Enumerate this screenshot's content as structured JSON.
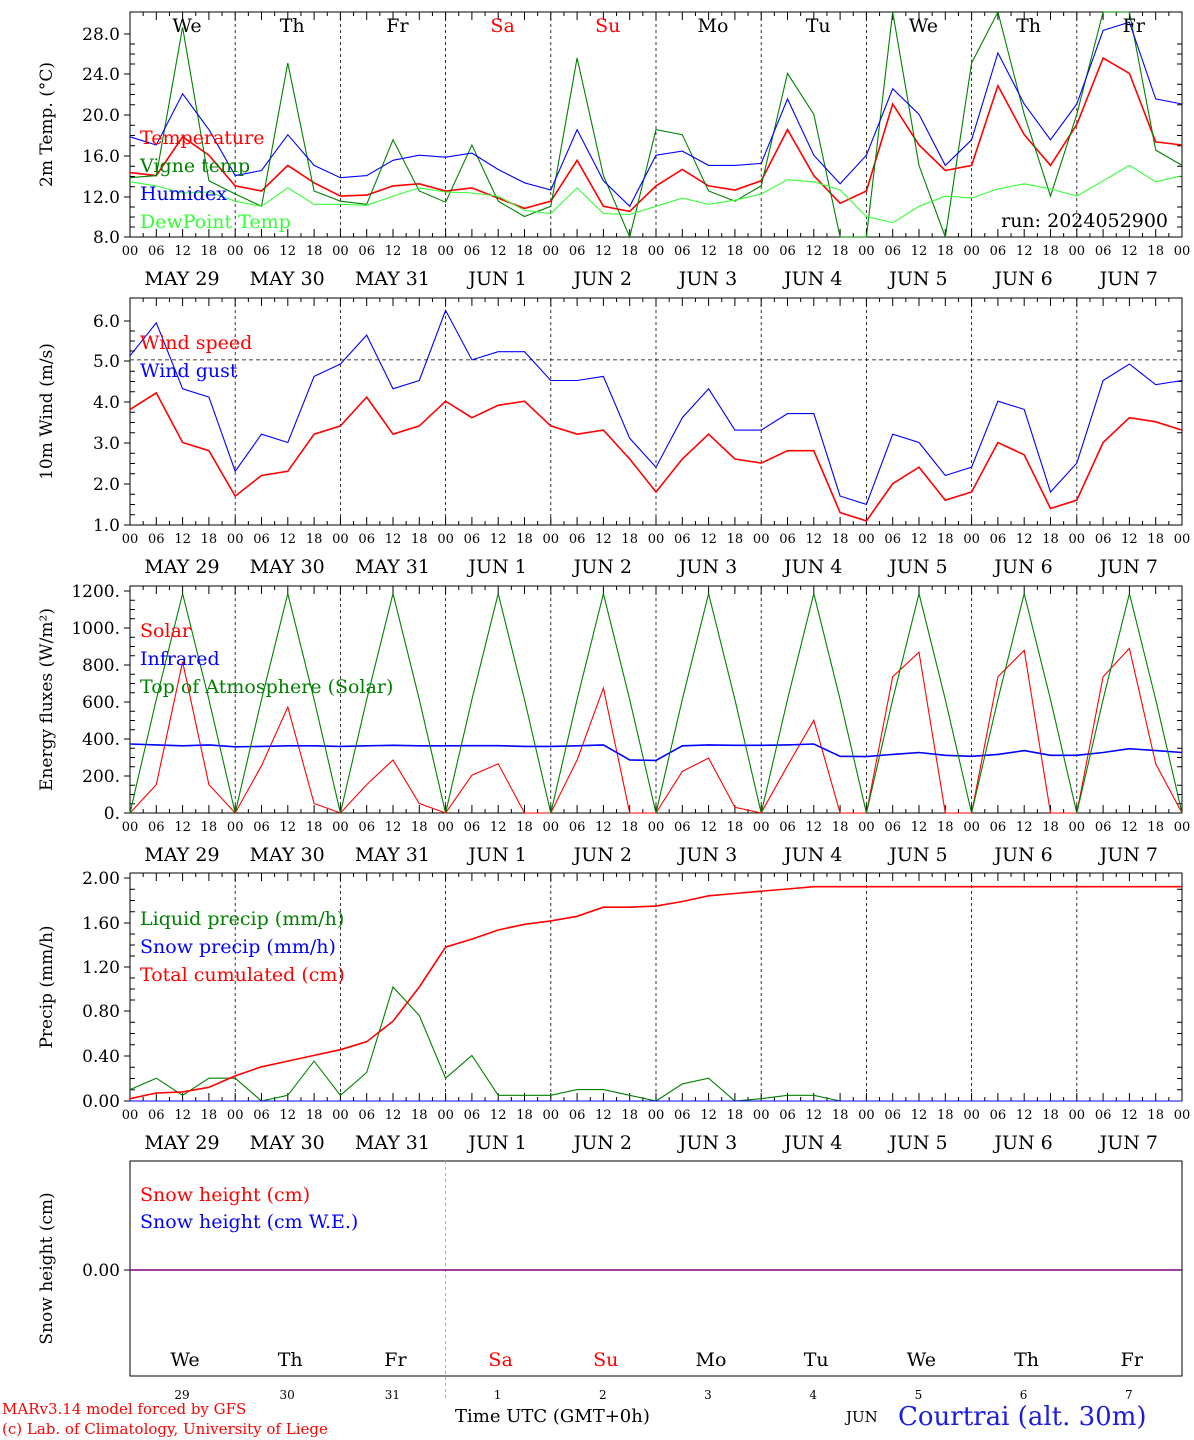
{
  "footer": {
    "model_line": "MARv3.14 model forced by GFS",
    "credit_line": "(c) Lab. of Climatology, University of Liege",
    "time_label": "Time UTC (GMT+0h)",
    "month_label": "JUN",
    "station": "Courtrai (alt. 30m)"
  },
  "run_label": "run: 2024052900",
  "hour_ticks": [
    "00",
    "06",
    "12",
    "18"
  ],
  "date_labels": [
    "MAY 29",
    "MAY 30",
    "MAY 31",
    "JUN  1",
    "JUN  2",
    "JUN  3",
    "JUN  4",
    "JUN  5",
    "JUN  6",
    "JUN  7"
  ],
  "day_names": [
    {
      "label": "We",
      "color": "#000000"
    },
    {
      "label": "Th",
      "color": "#000000"
    },
    {
      "label": "Fr",
      "color": "#000000"
    },
    {
      "label": "Sa",
      "color": "#ff0000"
    },
    {
      "label": "Su",
      "color": "#ff0000"
    },
    {
      "label": "Mo",
      "color": "#000000"
    },
    {
      "label": "Tu",
      "color": "#000000"
    },
    {
      "label": "We",
      "color": "#000000"
    },
    {
      "label": "Th",
      "color": "#000000"
    },
    {
      "label": "Fr",
      "color": "#000000"
    }
  ],
  "day_numbers": [
    "29",
    "30",
    "31",
    "1",
    "2",
    "3",
    "4",
    "5",
    "6",
    "7"
  ],
  "chart_data": [
    {
      "type": "line",
      "ylabel": "2m Temp. (°C)",
      "ylim": [
        8,
        30
      ],
      "yticks": [
        "8.0",
        "12.0",
        "16.0",
        "20.0",
        "24.0",
        "28.0"
      ],
      "x_unit": "hours since 2024-05-29 00 UTC",
      "x": [
        0,
        6,
        12,
        18,
        24,
        30,
        36,
        42,
        48,
        54,
        60,
        66,
        72,
        78,
        84,
        90,
        96,
        102,
        108,
        114,
        120,
        126,
        132,
        138,
        144,
        150,
        156,
        162,
        168,
        174,
        180,
        186,
        192,
        198,
        204,
        210,
        216,
        222,
        228,
        234,
        240
      ],
      "series": [
        {
          "name": "Temperature",
          "color": "#ff0000",
          "values": [
            14.3,
            14,
            17.8,
            16,
            13,
            12.5,
            15,
            13.3,
            12,
            12.1,
            13,
            13.2,
            12.5,
            12.8,
            11.8,
            10.8,
            11.5,
            15.5,
            11,
            10.5,
            13,
            14.6,
            13,
            12.6,
            13.5,
            18.5,
            14,
            11.3,
            12.5,
            21,
            17,
            14.5,
            15,
            22.8,
            18,
            15,
            19,
            25.5,
            24,
            17.3,
            17
          ]
        },
        {
          "name": "Vigne temp",
          "color": "#008000",
          "values": [
            13.8,
            14,
            28.5,
            13.5,
            12.2,
            11,
            25,
            12.5,
            11.5,
            11.2,
            17.5,
            12.5,
            11.4,
            17,
            11.5,
            10,
            11,
            25.5,
            14,
            6,
            18.5,
            18,
            12.5,
            11.5,
            13,
            24,
            20,
            8,
            7,
            30,
            15,
            8,
            25,
            30,
            20,
            12,
            20,
            30,
            30,
            16.5,
            15
          ]
        },
        {
          "name": "Humidex",
          "color": "#0000ff",
          "values": [
            17.8,
            17,
            22,
            18.5,
            14,
            14.5,
            18,
            15,
            13.8,
            14,
            15.5,
            16,
            15.8,
            16.2,
            14.6,
            13.3,
            12.6,
            18.5,
            13.5,
            11,
            16,
            16.4,
            15,
            15,
            15.2,
            21.5,
            16,
            13.2,
            16,
            22.5,
            20,
            15,
            17.5,
            26,
            21,
            17.5,
            21,
            28.2,
            29,
            21.5,
            21
          ]
        },
        {
          "name": "DewPoint Temp",
          "color": "#33ff33",
          "values": [
            13.4,
            13,
            12.3,
            12.4,
            11.5,
            11,
            12.8,
            11.2,
            11.2,
            11.1,
            12,
            12.8,
            12.4,
            12.3,
            12,
            10.6,
            10.3,
            12.8,
            10.3,
            10.2,
            11,
            11.8,
            11.2,
            11.6,
            12.2,
            13.6,
            13.4,
            12.6,
            10,
            9.4,
            11,
            12,
            11.8,
            12.7,
            13.2,
            12.7,
            12,
            13.5,
            15,
            13.4,
            14
          ]
        }
      ]
    },
    {
      "type": "line",
      "ylabel": "10m Wind (m/s)",
      "ylim": [
        1,
        6.5
      ],
      "yticks": [
        "1.0",
        "2.0",
        "3.0",
        "4.0",
        "5.0",
        "6.0"
      ],
      "reference_line": 5.0,
      "x_unit": "hours since 2024-05-29 00 UTC",
      "x": [
        0,
        6,
        12,
        18,
        24,
        30,
        36,
        42,
        48,
        54,
        60,
        66,
        72,
        78,
        84,
        90,
        96,
        102,
        108,
        114,
        120,
        126,
        132,
        138,
        144,
        150,
        156,
        162,
        168,
        174,
        180,
        186,
        192,
        198,
        204,
        210,
        216,
        222,
        228,
        234,
        240
      ],
      "series": [
        {
          "name": "Wind speed",
          "color": "#ff0000",
          "values": [
            3.8,
            4.2,
            3,
            2.8,
            1.7,
            2.2,
            2.3,
            3.2,
            3.4,
            4.1,
            3.2,
            3.4,
            4,
            3.6,
            3.9,
            4,
            3.4,
            3.2,
            3.3,
            2.6,
            1.8,
            2.6,
            3.2,
            2.6,
            2.5,
            2.8,
            2.8,
            1.3,
            1.1,
            2,
            2.4,
            1.6,
            1.8,
            3,
            2.7,
            1.4,
            1.6,
            3,
            3.6,
            3.5,
            3.3
          ]
        },
        {
          "name": "Wind gust",
          "color": "#0000ff",
          "values": [
            5.1,
            5.9,
            4.3,
            4.1,
            2.3,
            3.2,
            3,
            4.6,
            4.9,
            5.6,
            4.3,
            4.5,
            6.2,
            5,
            5.2,
            5.2,
            4.5,
            4.5,
            4.6,
            3.1,
            2.4,
            3.6,
            4.3,
            3.3,
            3.3,
            3.7,
            3.7,
            1.7,
            1.5,
            3.2,
            3,
            2.2,
            2.4,
            4,
            3.8,
            1.8,
            2.5,
            4.5,
            4.9,
            4.4,
            4.5
          ]
        }
      ]
    },
    {
      "type": "line",
      "ylabel": "Energy fluxes (W/m²)",
      "ylim": [
        0,
        1200
      ],
      "yticks": [
        "0.",
        "200.",
        "400.",
        "600.",
        "800.",
        "1000.",
        "1200."
      ],
      "x_unit": "hours since 2024-05-29 00 UTC",
      "x": [
        0,
        6,
        12,
        18,
        24,
        30,
        36,
        42,
        48,
        54,
        60,
        66,
        72,
        78,
        84,
        90,
        96,
        102,
        108,
        114,
        120,
        126,
        132,
        138,
        144,
        150,
        156,
        162,
        168,
        174,
        180,
        186,
        192,
        198,
        204,
        210,
        216,
        222,
        228,
        234,
        240
      ],
      "series": [
        {
          "name": "Solar",
          "color": "#ff0000",
          "values": [
            0,
            150,
            800,
            150,
            0,
            250,
            560,
            50,
            0,
            150,
            280,
            50,
            0,
            200,
            260,
            0,
            0,
            280,
            660,
            0,
            0,
            220,
            290,
            30,
            0,
            250,
            490,
            0,
            0,
            720,
            850,
            0,
            0,
            720,
            860,
            0,
            0,
            720,
            870,
            260,
            0
          ]
        },
        {
          "name": "Infrared",
          "color": "#0000ff",
          "values": [
            365,
            360,
            355,
            360,
            350,
            352,
            355,
            355,
            352,
            355,
            358,
            355,
            355,
            356,
            356,
            352,
            352,
            355,
            360,
            280,
            278,
            355,
            360,
            358,
            358,
            360,
            365,
            300,
            298,
            310,
            320,
            305,
            300,
            310,
            330,
            305,
            305,
            320,
            340,
            330,
            320
          ]
        },
        {
          "name": "Top of Atmosphere (Solar)",
          "color": "#008000",
          "values": [
            0,
            600,
            1160,
            600,
            0,
            600,
            1160,
            600,
            0,
            600,
            1160,
            600,
            0,
            600,
            1160,
            600,
            0,
            600,
            1160,
            600,
            0,
            600,
            1160,
            600,
            0,
            600,
            1160,
            600,
            0,
            600,
            1160,
            600,
            0,
            600,
            1160,
            600,
            0,
            600,
            1160,
            600,
            0
          ]
        }
      ]
    },
    {
      "type": "line",
      "ylabel": "Precip (mm/h)",
      "ylim": [
        0,
        2
      ],
      "yticks": [
        "0.00",
        "0.40",
        "0.80",
        "1.20",
        "1.60",
        "2.00"
      ],
      "x_unit": "hours since 2024-05-29 00 UTC",
      "x": [
        0,
        6,
        12,
        18,
        24,
        30,
        36,
        42,
        48,
        54,
        60,
        66,
        72,
        78,
        84,
        90,
        96,
        102,
        108,
        114,
        120,
        126,
        132,
        138,
        144,
        150,
        156,
        162,
        168,
        174,
        180,
        186,
        192,
        198,
        204,
        210,
        216,
        222,
        228,
        234,
        240
      ],
      "series": [
        {
          "name": "Liquid precip (mm/h)",
          "color": "#008000",
          "values": [
            0.1,
            0.2,
            0.05,
            0.2,
            0.2,
            0,
            0.05,
            0.35,
            0.05,
            0.25,
            1,
            0.75,
            0.2,
            0.4,
            0.05,
            0.05,
            0.05,
            0.1,
            0.1,
            0.05,
            0,
            0.15,
            0.2,
            0,
            0.02,
            0.05,
            0.05,
            0,
            0,
            0,
            0,
            0,
            0,
            0,
            0,
            0,
            0,
            0,
            0,
            0,
            0
          ]
        },
        {
          "name": "Snow precip (mm/h)",
          "color": "#0000ff",
          "values": [
            0,
            0,
            0,
            0,
            0,
            0,
            0,
            0,
            0,
            0,
            0,
            0,
            0,
            0,
            0,
            0,
            0,
            0,
            0,
            0,
            0,
            0,
            0,
            0,
            0,
            0,
            0,
            0,
            0,
            0,
            0,
            0,
            0,
            0,
            0,
            0,
            0,
            0,
            0,
            0,
            0
          ]
        },
        {
          "name": "Total cumulated (cm)",
          "color": "#ff0000",
          "values": [
            0.02,
            0.07,
            0.08,
            0.12,
            0.22,
            0.3,
            0.35,
            0.4,
            0.45,
            0.52,
            0.7,
            1,
            1.35,
            1.42,
            1.5,
            1.55,
            1.58,
            1.62,
            1.7,
            1.7,
            1.71,
            1.75,
            1.8,
            1.82,
            1.84,
            1.86,
            1.88,
            1.88,
            1.88,
            1.88,
            1.88,
            1.88,
            1.88,
            1.88,
            1.88,
            1.88,
            1.88,
            1.88,
            1.88,
            1.88,
            1.88
          ]
        }
      ]
    },
    {
      "type": "line",
      "ylabel": "Snow height (cm)",
      "yticks": [
        "0.00"
      ],
      "x_unit": "hours since 2024-05-29 00 UTC",
      "x": [
        0,
        240
      ],
      "series": [
        {
          "name": "Snow height (cm)",
          "color": "#ff0000",
          "values": [
            0,
            0
          ]
        },
        {
          "name": "Snow height (cm W.E.)",
          "color": "#0000ff",
          "values": [
            0,
            0
          ]
        }
      ]
    }
  ]
}
